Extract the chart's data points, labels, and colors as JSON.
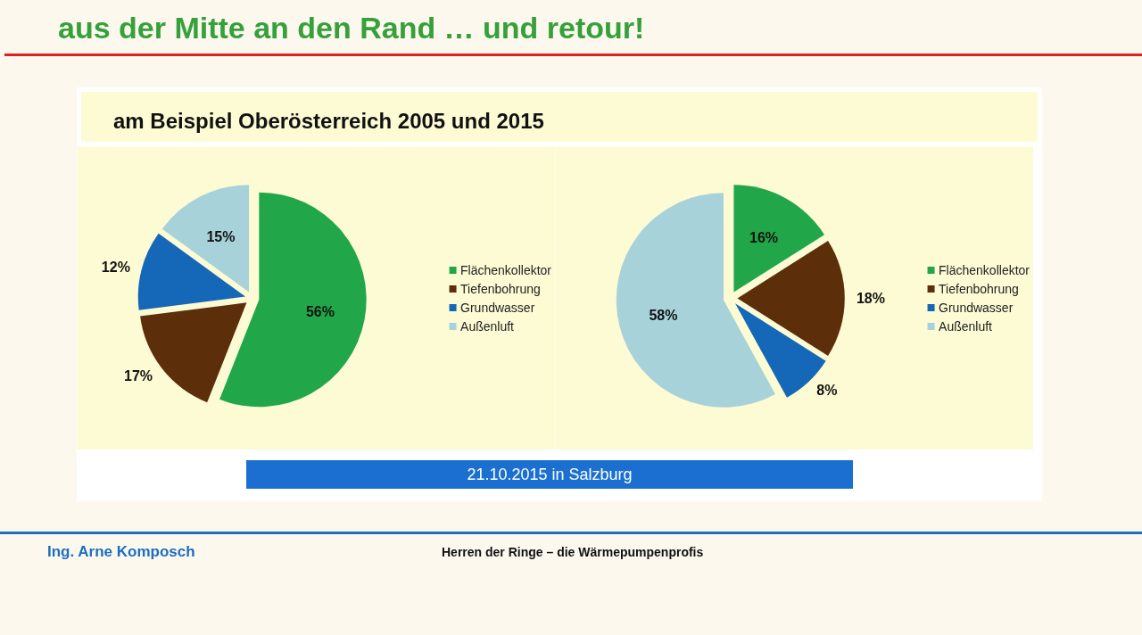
{
  "chart_data": [
    {
      "type": "pie",
      "title": "aus der Mitte an den Rand … und retour!",
      "subtitle": "am Beispiel Oberösterreich 2005 und 2015",
      "categories": [
        "Flächenkollektor",
        "Tiefenbohrung",
        "Grundwasser",
        "Außenluft"
      ],
      "values": [
        56,
        17,
        12,
        15
      ],
      "colors": [
        "#21a64a",
        "#5c2e0a",
        "#1567b8",
        "#a8d2da"
      ],
      "value_labels": [
        "56%",
        "17%",
        "12%",
        "15%"
      ],
      "legend": "right",
      "annotations": [
        "21.10.2015 in Salzburg",
        "Ing. Arne Komposch",
        "Herren der Ringe – die Wärmepumpenprofis"
      ]
    },
    {
      "type": "pie",
      "categories": [
        "Flächenkollektor",
        "Tiefenbohrung",
        "Grundwasser",
        "Außenluft"
      ],
      "values": [
        16,
        18,
        8,
        58
      ],
      "colors": [
        "#21a64a",
        "#5c2e0a",
        "#1567b8",
        "#a8d2da"
      ],
      "value_labels": [
        "16%",
        "18%",
        "8%",
        "58%"
      ],
      "legend": "right"
    }
  ]
}
